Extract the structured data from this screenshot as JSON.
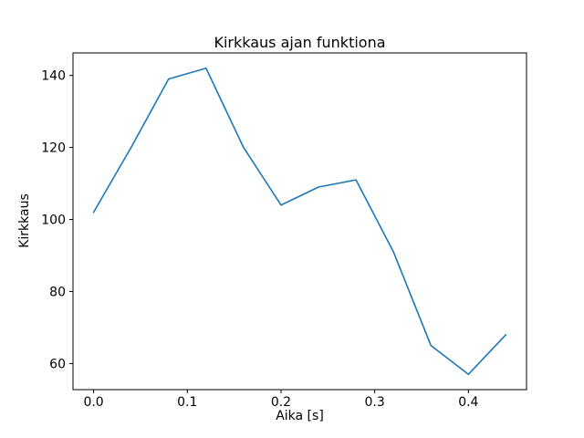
{
  "chart_data": {
    "type": "line",
    "title": "Kirkkaus ajan funktiona",
    "xlabel": "Aika [s]",
    "ylabel": "Kirkkaus",
    "x": [
      0.0,
      0.04,
      0.08,
      0.12,
      0.16,
      0.2,
      0.24,
      0.28,
      0.32,
      0.36,
      0.4,
      0.44
    ],
    "y": [
      102,
      120,
      139,
      142,
      120,
      104,
      109,
      111,
      91,
      65,
      57,
      68
    ],
    "xticks": [
      0.0,
      0.1,
      0.2,
      0.3,
      0.4
    ],
    "xtick_labels": [
      "0.0",
      "0.1",
      "0.2",
      "0.3",
      "0.4"
    ],
    "yticks": [
      60,
      80,
      100,
      120,
      140
    ],
    "ytick_labels": [
      "60",
      "80",
      "100",
      "120",
      "140"
    ],
    "xlim": [
      -0.022,
      0.462
    ],
    "ylim": [
      52.75,
      146.25
    ],
    "line_color": "#1f77b4",
    "axis_color": "#000000",
    "background": "#ffffff",
    "grid": false,
    "legend_position": "none"
  }
}
